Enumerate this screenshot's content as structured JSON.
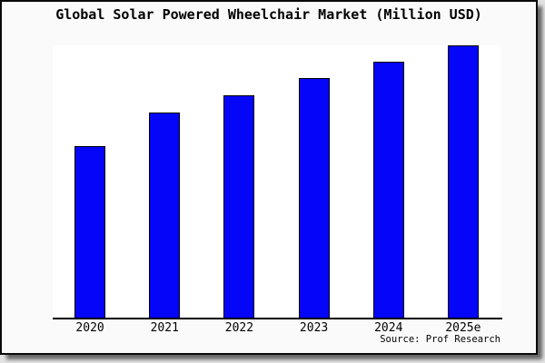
{
  "figure": {
    "source": "Source: Prof Research"
  },
  "chart_data": {
    "type": "bar",
    "title": "Global Solar Powered Wheelchair Market (Million USD)",
    "categories": [
      "2020",
      "2021",
      "2022",
      "2023",
      "2024",
      "2025e"
    ],
    "values": [
      62.8,
      75.0,
      81.3,
      87.7,
      93.8,
      99.8
    ],
    "value_scale": "relative units, estimated from bar heights; tallest bar (2025e) = 100; no y-axis ticks shown",
    "ylim": [
      0,
      100
    ],
    "xlabel": "",
    "ylabel": "",
    "grid": false,
    "legend": false,
    "bar_color": "#0505f8",
    "bar_border_color": "#000000",
    "annotations": [
      "Source: Prof Research"
    ]
  }
}
